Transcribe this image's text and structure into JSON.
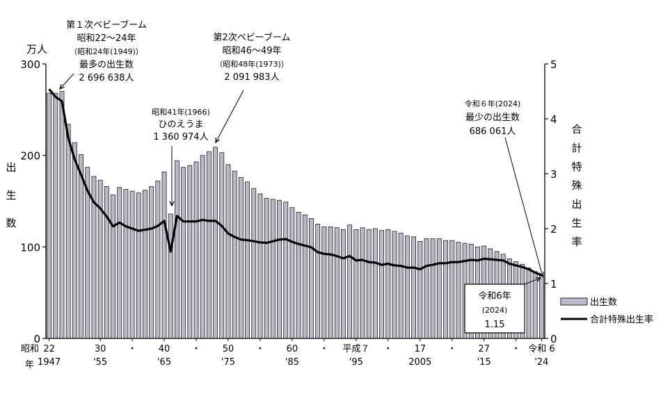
{
  "chart_data": {
    "type": "bar+line",
    "left_axis": {
      "unit_label": "万人",
      "title_chars": [
        "出",
        "生",
        "数"
      ],
      "ylim": [
        0,
        300
      ],
      "ticks": [
        "0",
        "100",
        "200",
        "300"
      ]
    },
    "right_axis": {
      "title_chars": [
        "合",
        "計",
        "特",
        "殊",
        "出",
        "生",
        "率"
      ],
      "ylim": [
        0,
        5
      ],
      "ticks": [
        "0",
        "1",
        "2",
        "3",
        "4",
        "5"
      ]
    },
    "x_labels": [
      {
        "year": 1947,
        "top": "22",
        "bottom": "1947"
      },
      {
        "year": 1955,
        "top": "30",
        "bottom": "'55"
      },
      {
        "year": 1960,
        "top": "・",
        "bottom": ""
      },
      {
        "year": 1965,
        "top": "40",
        "bottom": "'65"
      },
      {
        "year": 1970,
        "top": "・",
        "bottom": ""
      },
      {
        "year": 1975,
        "top": "50",
        "bottom": "'75"
      },
      {
        "year": 1980,
        "top": "・",
        "bottom": ""
      },
      {
        "year": 1985,
        "top": "60",
        "bottom": "'85"
      },
      {
        "year": 1990,
        "top": "・",
        "bottom": ""
      },
      {
        "year": 1995,
        "top": "平成７",
        "bottom": "'95"
      },
      {
        "year": 2000,
        "top": "・",
        "bottom": ""
      },
      {
        "year": 2005,
        "top": "17",
        "bottom": "2005"
      },
      {
        "year": 2010,
        "top": "・",
        "bottom": ""
      },
      {
        "year": 2015,
        "top": "27",
        "bottom": "'15"
      },
      {
        "year": 2020,
        "top": "・",
        "bottom": ""
      },
      {
        "year": 2024,
        "top": "令和 6",
        "bottom": "'24"
      }
    ],
    "x_era_label": "昭和",
    "x_era_suffix": "年",
    "years": [
      1947,
      1948,
      1949,
      1950,
      1951,
      1952,
      1953,
      1954,
      1955,
      1956,
      1957,
      1958,
      1959,
      1960,
      1961,
      1962,
      1963,
      1964,
      1965,
      1966,
      1967,
      1968,
      1969,
      1970,
      1971,
      1972,
      1973,
      1974,
      1975,
      1976,
      1977,
      1978,
      1979,
      1980,
      1981,
      1982,
      1983,
      1984,
      1985,
      1986,
      1987,
      1988,
      1989,
      1990,
      1991,
      1992,
      1993,
      1994,
      1995,
      1996,
      1997,
      1998,
      1999,
      2000,
      2001,
      2002,
      2003,
      2004,
      2005,
      2006,
      2007,
      2008,
      2009,
      2010,
      2011,
      2012,
      2013,
      2014,
      2015,
      2016,
      2017,
      2018,
      2019,
      2020,
      2021,
      2022,
      2023,
      2024
    ],
    "series": [
      {
        "name": "出生数",
        "type": "bar",
        "axis": "left",
        "values": [
          268,
          268,
          270,
          234,
          214,
          201,
          187,
          177,
          173,
          166,
          157,
          165,
          163,
          161,
          159,
          162,
          166,
          172,
          182,
          136,
          194,
          187,
          189,
          193,
          200,
          204,
          209,
          203,
          190,
          183,
          176,
          171,
          164,
          158,
          153,
          152,
          151,
          149,
          143,
          138,
          135,
          131,
          125,
          122,
          122,
          121,
          119,
          124,
          119,
          121,
          119,
          120,
          118,
          119,
          117,
          115,
          112,
          111,
          106,
          109,
          109,
          109,
          107,
          107,
          105,
          104,
          103,
          100,
          101,
          98,
          95,
          92,
          87,
          84,
          81,
          77,
          73,
          69
        ]
      },
      {
        "name": "合計特殊出生率",
        "type": "line",
        "axis": "right",
        "values": [
          4.54,
          4.4,
          4.32,
          3.65,
          3.26,
          2.98,
          2.69,
          2.48,
          2.37,
          2.22,
          2.04,
          2.11,
          2.04,
          2.0,
          1.96,
          1.98,
          2.0,
          2.05,
          2.14,
          1.58,
          2.23,
          2.13,
          2.13,
          2.13,
          2.16,
          2.14,
          2.14,
          2.05,
          1.91,
          1.85,
          1.8,
          1.79,
          1.77,
          1.75,
          1.74,
          1.77,
          1.8,
          1.81,
          1.76,
          1.72,
          1.69,
          1.66,
          1.57,
          1.54,
          1.53,
          1.5,
          1.46,
          1.5,
          1.42,
          1.43,
          1.39,
          1.38,
          1.34,
          1.36,
          1.33,
          1.32,
          1.29,
          1.29,
          1.26,
          1.32,
          1.34,
          1.37,
          1.37,
          1.39,
          1.39,
          1.41,
          1.43,
          1.42,
          1.45,
          1.44,
          1.43,
          1.42,
          1.36,
          1.33,
          1.3,
          1.26,
          1.2,
          1.15
        ]
      }
    ],
    "legend": {
      "placement": "right",
      "items": [
        {
          "label": "出生数",
          "kind": "bar"
        },
        {
          "label": "合計特殊出生率",
          "kind": "line"
        }
      ]
    },
    "annotations": {
      "boom1": [
        "第１次ベビーブーム",
        "昭和22～24年",
        "（昭和24年(1949)）",
        "最多の出生数",
        "2 696 638人"
      ],
      "boom2": [
        "第2次ベビーブーム",
        "昭和46～49年",
        "（昭和48年(1973)）",
        "2 091 983人"
      ],
      "hinoe": [
        "昭和41年(1966)",
        "ひのえうま",
        "1 360 974人"
      ],
      "min": [
        "令和６年(2024)",
        "最少の出生数",
        "686 061人"
      ],
      "tfr_box": [
        "令和6年",
        "(2024)",
        "1.15"
      ]
    },
    "colors": {
      "bar_fill": "#b9b9c8",
      "bar_stroke": "#222222",
      "line": "#000000"
    }
  }
}
